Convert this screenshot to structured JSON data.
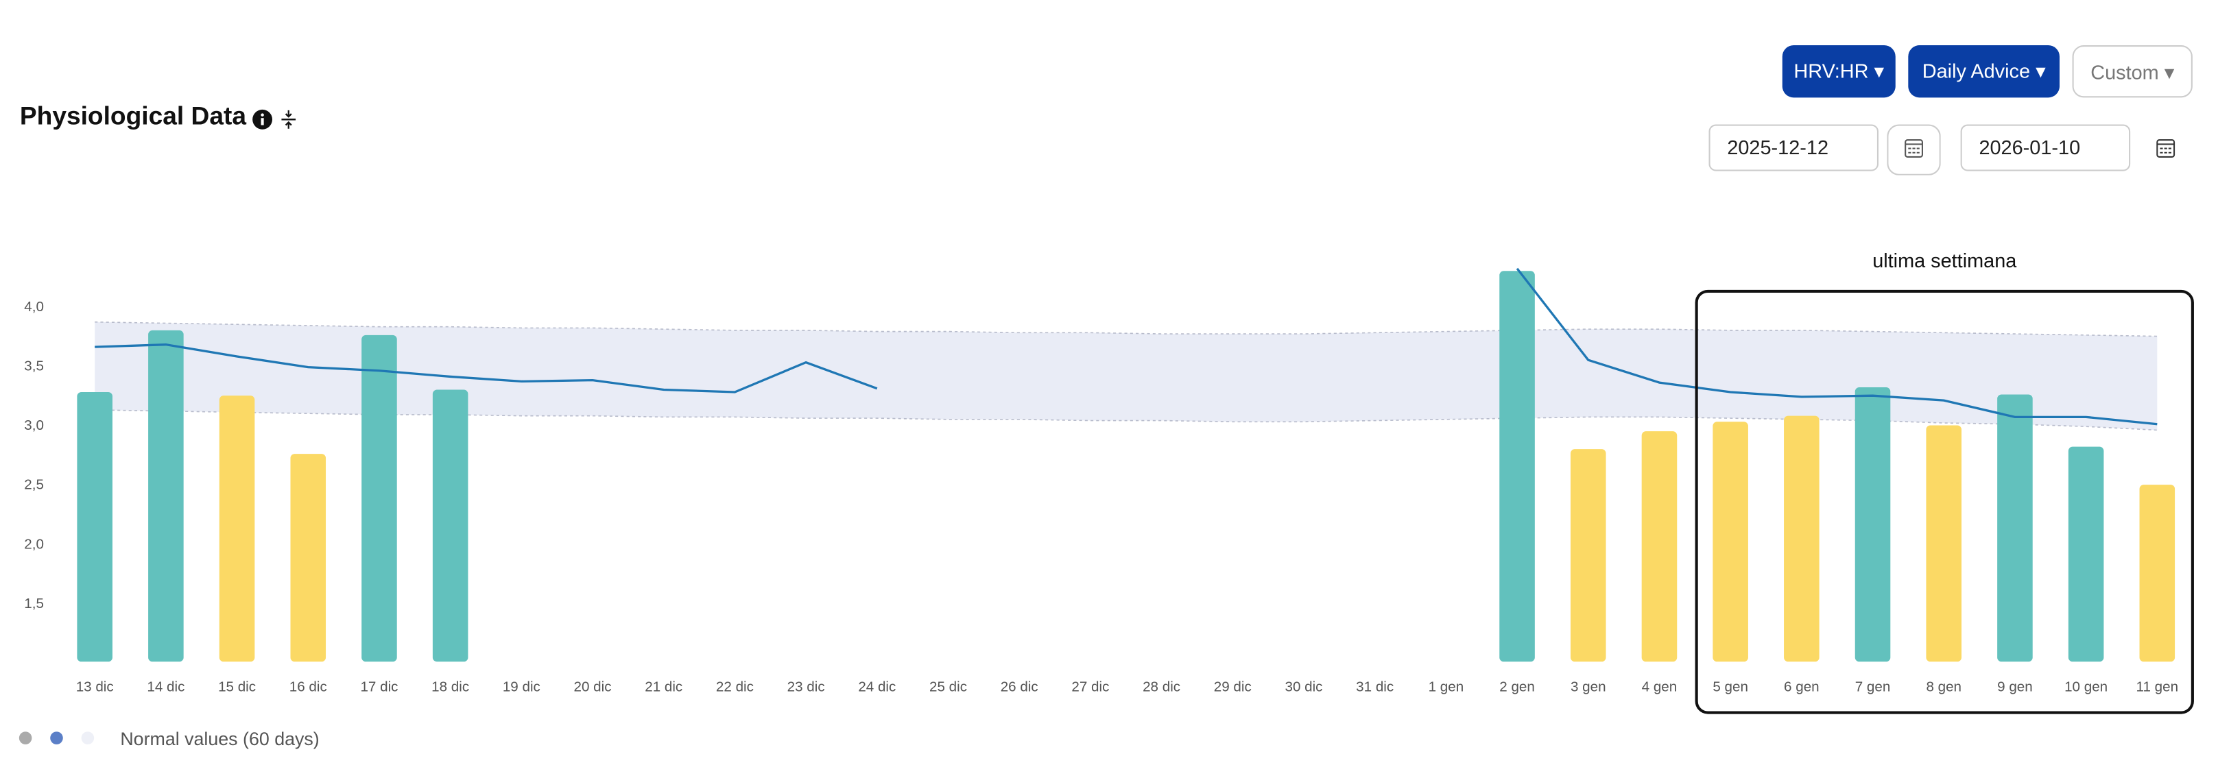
{
  "header": {
    "title": "Physiological Data"
  },
  "controls": {
    "metric_button": "HRV:HR",
    "advice_button": "Daily Advice",
    "range_button": "Custom",
    "date_from": "2025-12-12",
    "date_to": "2026-01-10"
  },
  "chart_data": {
    "type": "bar",
    "categories": [
      "13 dic",
      "14 dic",
      "15 dic",
      "16 dic",
      "17 dic",
      "18 dic",
      "19 dic",
      "20 dic",
      "21 dic",
      "22 dic",
      "23 dic",
      "24 dic",
      "25 dic",
      "26 dic",
      "27 dic",
      "28 dic",
      "29 dic",
      "30 dic",
      "31 dic",
      "1 gen",
      "2 gen",
      "3 gen",
      "4 gen",
      "5 gen",
      "6 gen",
      "7 gen",
      "8 gen",
      "9 gen",
      "10 gen",
      "11 gen"
    ],
    "series": [
      {
        "type": "bar",
        "values": [
          3.27,
          3.79,
          3.24,
          2.75,
          3.75,
          3.29,
          null,
          null,
          null,
          null,
          null,
          null,
          null,
          null,
          null,
          null,
          null,
          null,
          null,
          null,
          4.29,
          2.79,
          2.94,
          3.02,
          3.07,
          3.31,
          2.99,
          3.25,
          2.81,
          2.49
        ],
        "colors": [
          "#62c1bd",
          "#62c1bd",
          "#fbd965",
          "#fbd965",
          "#62c1bd",
          "#62c1bd",
          null,
          null,
          null,
          null,
          null,
          null,
          null,
          null,
          null,
          null,
          null,
          null,
          null,
          null,
          "#62c1bd",
          "#fbd965",
          "#fbd965",
          "#fbd965",
          "#fbd965",
          "#62c1bd",
          "#fbd965",
          "#62c1bd",
          "#62c1bd",
          "#fbd965"
        ]
      },
      {
        "type": "line",
        "color": "#1f77b4",
        "values": [
          3.65,
          3.67,
          3.57,
          3.48,
          3.45,
          3.4,
          3.36,
          3.37,
          3.29,
          3.27,
          3.52,
          3.3,
          null,
          null,
          null,
          null,
          null,
          null,
          null,
          null,
          4.31,
          3.54,
          3.35,
          3.27,
          3.23,
          3.24,
          3.2,
          3.06,
          3.06,
          3.0
        ]
      },
      {
        "type": "band",
        "color": "#e9ecf6",
        "upper": [
          3.86,
          3.85,
          3.84,
          3.83,
          3.82,
          3.82,
          3.81,
          3.81,
          3.8,
          3.79,
          3.79,
          3.78,
          3.78,
          3.77,
          3.77,
          3.76,
          3.76,
          3.76,
          3.77,
          3.78,
          3.79,
          3.8,
          3.8,
          3.79,
          3.79,
          3.78,
          3.77,
          3.76,
          3.75,
          3.74
        ],
        "lower": [
          3.12,
          3.11,
          3.1,
          3.09,
          3.08,
          3.08,
          3.07,
          3.07,
          3.06,
          3.06,
          3.05,
          3.05,
          3.04,
          3.04,
          3.03,
          3.03,
          3.02,
          3.02,
          3.03,
          3.04,
          3.05,
          3.06,
          3.06,
          3.05,
          3.04,
          3.03,
          3.01,
          3.0,
          2.98,
          2.95
        ]
      }
    ],
    "ylim": [
      1,
      4.4
    ],
    "yticks": [
      {
        "value": 1.5,
        "label": "1,5"
      },
      {
        "value": 2,
        "label": "2,0"
      },
      {
        "value": 2.5,
        "label": "2,5"
      },
      {
        "value": 3,
        "label": "3,0"
      },
      {
        "value": 3.5,
        "label": "3,5"
      },
      {
        "value": 4,
        "label": "4,0"
      }
    ],
    "annotation": "ultima settimana",
    "legend": {
      "label": "Normal values (60 days)",
      "dot_colors": [
        "#aaaaaa",
        "#5b7fc7",
        "#eef0f7"
      ]
    }
  }
}
